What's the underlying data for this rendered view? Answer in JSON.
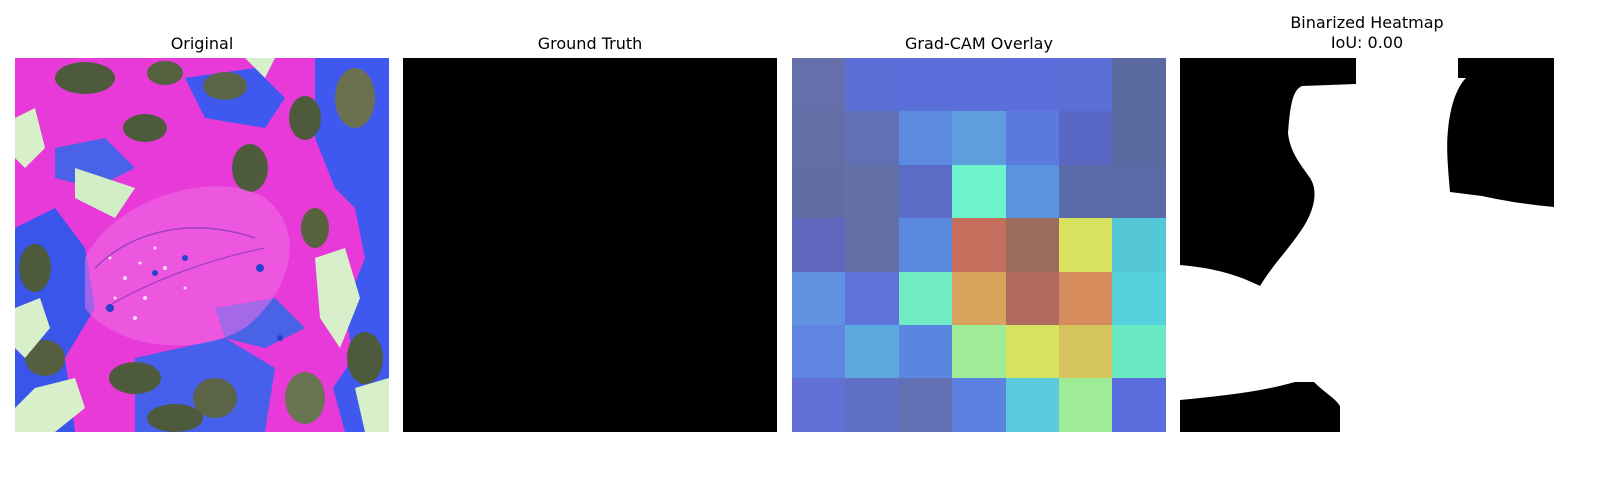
{
  "panels": [
    {
      "title": "Original"
    },
    {
      "title": "Ground Truth"
    },
    {
      "title": "Grad-CAM Overlay"
    },
    {
      "title": "Binarized Heatmap",
      "subtitle": "IoU: 0.00"
    }
  ],
  "gradcam_grid": [
    [
      "#6570aa",
      "#5c6ed8",
      "#5b6fdb",
      "#5b6ed9",
      "#5b6edc",
      "#5b6dd6",
      "#5a6aa1"
    ],
    [
      "#636ea5",
      "#6070b3",
      "#5b8ae0",
      "#5f9edd",
      "#5a7ae0",
      "#5a68c5",
      "#5a6aa1"
    ],
    [
      "#626ea3",
      "#6270a5",
      "#5a6cc6",
      "#6ef2cc",
      "#5a93e0",
      "#5a6ba8",
      "#5a6ba8"
    ],
    [
      "#6068be",
      "#6370a5",
      "#5a89e0",
      "#c56e5d",
      "#9a6c5c",
      "#d8e25e",
      "#55c8d8"
    ],
    [
      "#5e92e0",
      "#5e72dc",
      "#72ecc4",
      "#d7a45d",
      "#b06b5e",
      "#d78c5e",
      "#55d1de"
    ],
    [
      "#5e85e0",
      "#5ea8e0",
      "#5a86df",
      "#9fed98",
      "#d8e25e",
      "#d6c45e",
      "#6ae8c4"
    ],
    [
      "#6270d6",
      "#6070c4",
      "#6470b4",
      "#5b82e0",
      "#59cadf",
      "#9eec96",
      "#5b6ddc"
    ]
  ],
  "colors": {
    "magenta": "#e83ad8",
    "blue": "#3f58f0",
    "olive": "#4e5a3c",
    "pale": "#d7f0c9",
    "mask_black": "#000000",
    "mask_white": "#ffffff"
  }
}
